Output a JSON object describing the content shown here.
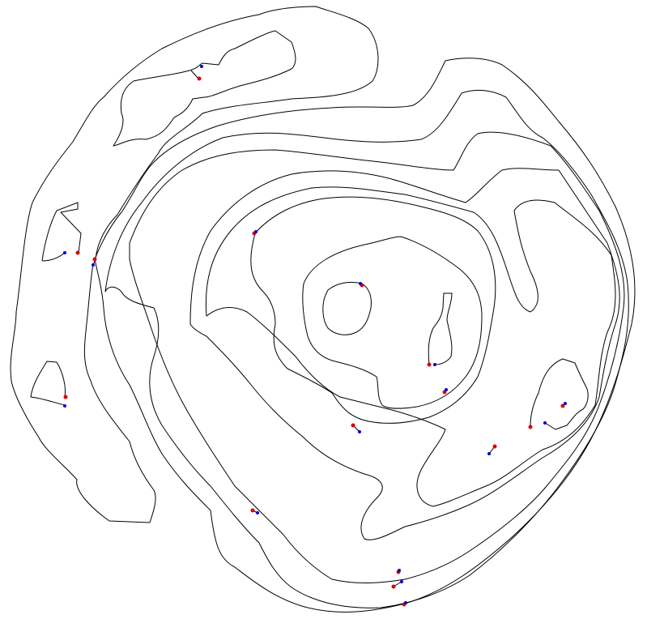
{
  "diagram": {
    "kind": "contour map",
    "colors": {
      "line": "#000000",
      "start_marker": "#dd0000",
      "end_marker": "#0000cc",
      "background": "#ffffff"
    }
  }
}
